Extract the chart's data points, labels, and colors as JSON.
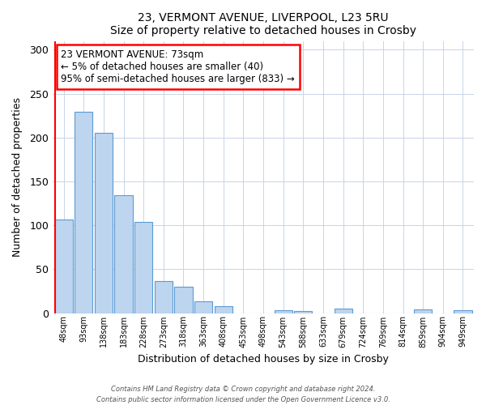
{
  "title": "23, VERMONT AVENUE, LIVERPOOL, L23 5RU",
  "subtitle": "Size of property relative to detached houses in Crosby",
  "xlabel": "Distribution of detached houses by size in Crosby",
  "ylabel": "Number of detached properties",
  "bar_labels": [
    "48sqm",
    "93sqm",
    "138sqm",
    "183sqm",
    "228sqm",
    "273sqm",
    "318sqm",
    "363sqm",
    "408sqm",
    "453sqm",
    "498sqm",
    "543sqm",
    "588sqm",
    "633sqm",
    "679sqm",
    "724sqm",
    "769sqm",
    "814sqm",
    "859sqm",
    "904sqm",
    "949sqm"
  ],
  "bar_values": [
    107,
    229,
    205,
    134,
    104,
    36,
    30,
    13,
    8,
    0,
    0,
    3,
    2,
    0,
    5,
    0,
    0,
    0,
    4,
    0,
    3
  ],
  "bar_color": "#bdd5ee",
  "bar_edge_color": "#5b9bd5",
  "ylim": [
    0,
    310
  ],
  "yticks": [
    0,
    50,
    100,
    150,
    200,
    250,
    300
  ],
  "annotation_text_line1": "23 VERMONT AVENUE: 73sqm",
  "annotation_text_line2": "← 5% of detached houses are smaller (40)",
  "annotation_text_line3": "95% of semi-detached houses are larger (833) →",
  "footer_line1": "Contains HM Land Registry data © Crown copyright and database right 2024.",
  "footer_line2": "Contains public sector information licensed under the Open Government Licence v3.0.",
  "bg_color": "#ffffff",
  "grid_color": "#c8d4e8"
}
